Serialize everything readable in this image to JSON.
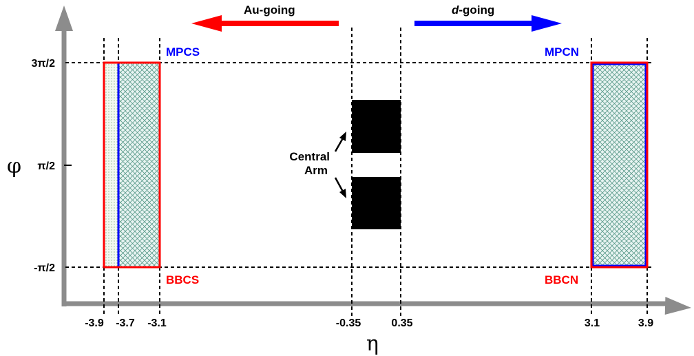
{
  "axes": {
    "x_symbol": "η",
    "y_symbol": "φ",
    "x_ticks": [
      "-3.9",
      "-3.7",
      "-3.1",
      "-0.35",
      "0.35",
      "3.1",
      "3.9"
    ],
    "y_ticks": [
      "3π/2",
      "π/2",
      "-π/2"
    ]
  },
  "arrows": {
    "left_label": "Au-going",
    "right_label_italic": "d",
    "right_label_rest": "-going",
    "left_color": "#ff0000",
    "right_color": "#0000ff"
  },
  "detectors": {
    "mpcs": "MPCS",
    "mpcn": "MPCN",
    "bbcs": "BBCS",
    "bbcn": "BBCN",
    "central_arm_line1": "Central",
    "central_arm_line2": "Arm"
  },
  "colors": {
    "bbc": "#ff0000",
    "mpc": "#0000ff",
    "central": "#000000",
    "hatch": "#4a8a7a",
    "fill": "#e8f4f2"
  }
}
